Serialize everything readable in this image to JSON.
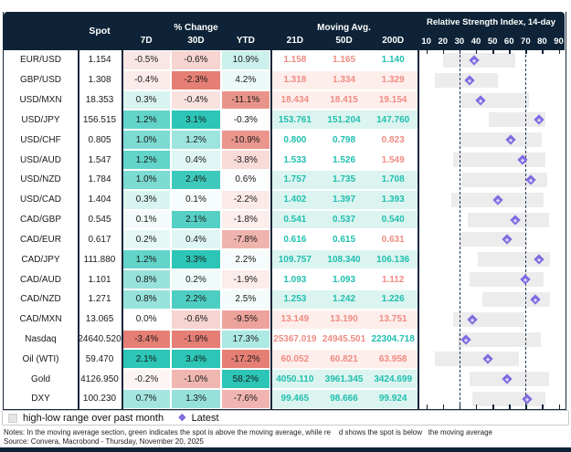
{
  "header": {
    "spot": "Spot",
    "pct_change_group": "% Change",
    "pct_cols": [
      "7D",
      "30D",
      "YTD"
    ],
    "ma_group": "Moving Avg.",
    "ma_cols": [
      "21D",
      "50D",
      "200D"
    ],
    "rsi_title": "Relative Strength Index, 14-day",
    "rsi_ticks": [
      10,
      20,
      30,
      40,
      50,
      60,
      70,
      80,
      90
    ]
  },
  "legend": {
    "range_label": "high-low range over past month",
    "latest_label": "Latest"
  },
  "notes": "Notes: In the moving average section, green indicates the spot is above the moving average, while re    d shows the spot is below   the moving average",
  "source": "Source: Convera, Macrobond - Thursday, November 20, 2025",
  "colors": {
    "header_bg": "#0e2337",
    "frame": "#18263a",
    "teal": "#2cc5b6",
    "salmon": "#e57f75",
    "ma_up_text": "#1fbfae",
    "ma_down_text": "#f08b82",
    "ma_up_bg": "#dcf4f0",
    "ma_down_bg": "#fdeeec",
    "bar": "#ececec",
    "marker": "#7f6ce0",
    "dash": "#223a52"
  },
  "chart_data": {
    "type": "table",
    "title": "FX and markets monitor: spot, % change, moving averages, RSI",
    "rsi_axis": {
      "min": 10,
      "max": 90,
      "oversold_line": 30,
      "overbought_line": 70,
      "bar_meaning": "high-low range over past month",
      "marker_meaning": "Latest"
    },
    "rows": [
      {
        "label": "EUR/USD",
        "spot": "1.154",
        "pct": [
          -0.5,
          -0.6,
          10.9
        ],
        "ma": [
          "1.158",
          "1.165",
          "1.140"
        ],
        "rsi": {
          "low": 20,
          "high": 64,
          "latest": 39
        }
      },
      {
        "label": "GBP/USD",
        "spot": "1.308",
        "pct": [
          -0.4,
          -2.3,
          4.2
        ],
        "ma": [
          "1.318",
          "1.334",
          "1.329"
        ],
        "rsi": {
          "low": 15,
          "high": 53,
          "latest": 36
        }
      },
      {
        "label": "USD/MXN",
        "spot": "18.353",
        "pct": [
          0.3,
          -0.4,
          -11.1
        ],
        "ma": [
          "18.434",
          "18.415",
          "19.154"
        ],
        "rsi": {
          "low": 30,
          "high": 72,
          "latest": 43
        }
      },
      {
        "label": "USD/JPY",
        "spot": "156.515",
        "pct": [
          1.2,
          3.1,
          -0.3
        ],
        "ma": [
          "153.761",
          "151.204",
          "147.760"
        ],
        "rsi": {
          "low": 48,
          "high": 82,
          "latest": 78
        }
      },
      {
        "label": "USD/CHF",
        "spot": "0.805",
        "pct": [
          1.0,
          1.2,
          -10.9
        ],
        "ma": [
          "0.800",
          "0.798",
          "0.823"
        ],
        "rsi": {
          "low": 30,
          "high": 80,
          "latest": 61
        }
      },
      {
        "label": "USD/AUD",
        "spot": "1.547",
        "pct": [
          1.2,
          0.4,
          -3.8
        ],
        "ma": [
          "1.533",
          "1.526",
          "1.549"
        ],
        "rsi": {
          "low": 26,
          "high": 82,
          "latest": 68
        }
      },
      {
        "label": "USD/NZD",
        "spot": "1.784",
        "pct": [
          1.0,
          2.4,
          0.6
        ],
        "ma": [
          "1.757",
          "1.735",
          "1.708"
        ],
        "rsi": {
          "low": 31,
          "high": 83,
          "latest": 73
        }
      },
      {
        "label": "USD/CAD",
        "spot": "1.404",
        "pct": [
          0.3,
          0.1,
          -2.2
        ],
        "ma": [
          "1.402",
          "1.397",
          "1.393"
        ],
        "rsi": {
          "low": 25,
          "high": 81,
          "latest": 53
        }
      },
      {
        "label": "CAD/GBP",
        "spot": "0.545",
        "pct": [
          0.1,
          2.1,
          -1.8
        ],
        "ma": [
          "0.541",
          "0.537",
          "0.540"
        ],
        "rsi": {
          "low": 35,
          "high": 84,
          "latest": 64
        }
      },
      {
        "label": "CAD/EUR",
        "spot": "0.617",
        "pct": [
          0.2,
          0.4,
          -7.8
        ],
        "ma": [
          "0.616",
          "0.615",
          "0.631"
        ],
        "rsi": {
          "low": 30,
          "high": 71,
          "latest": 59
        }
      },
      {
        "label": "CAD/JPY",
        "spot": "111.880",
        "pct": [
          1.2,
          3.3,
          2.2
        ],
        "ma": [
          "109.757",
          "108.340",
          "106.136"
        ],
        "rsi": {
          "low": 41,
          "high": 85,
          "latest": 78
        }
      },
      {
        "label": "CAD/AUD",
        "spot": "1.101",
        "pct": [
          0.8,
          0.2,
          -1.9
        ],
        "ma": [
          "1.093",
          "1.093",
          "1.112"
        ],
        "rsi": {
          "low": 36,
          "high": 81,
          "latest": 70
        }
      },
      {
        "label": "CAD/NZD",
        "spot": "1.271",
        "pct": [
          0.8,
          2.2,
          2.5
        ],
        "ma": [
          "1.253",
          "1.242",
          "1.226"
        ],
        "rsi": {
          "low": 44,
          "high": 85,
          "latest": 76
        }
      },
      {
        "label": "CAD/MXN",
        "spot": "13.065",
        "pct": [
          0.0,
          -0.6,
          -9.5
        ],
        "ma": [
          "13.149",
          "13.190",
          "13.751"
        ],
        "rsi": {
          "low": 26,
          "high": 69,
          "latest": 38
        }
      },
      {
        "label": "Nasdaq",
        "spot": "24640.520",
        "pct": [
          -3.4,
          -1.9,
          17.3
        ],
        "ma": [
          "25367.019",
          "24945.501",
          "22304.718"
        ],
        "rsi": {
          "low": 29,
          "high": 79,
          "latest": 34
        }
      },
      {
        "label": "Oil (WTI)",
        "spot": "59.470",
        "pct": [
          2.1,
          3.4,
          -17.2
        ],
        "ma": [
          "60.052",
          "60.821",
          "63.958"
        ],
        "rsi": {
          "low": 15,
          "high": 66,
          "latest": 47
        }
      },
      {
        "label": "Gold",
        "spot": "4126.950",
        "pct": [
          -0.2,
          -1.0,
          58.2
        ],
        "ma": [
          "4050.110",
          "3961.345",
          "3424.699"
        ],
        "rsi": {
          "low": 36,
          "high": 84,
          "latest": 59
        }
      },
      {
        "label": "DXY",
        "spot": "100.230",
        "pct": [
          0.7,
          1.3,
          -7.6
        ],
        "ma": [
          "99.465",
          "98.666",
          "99.924"
        ],
        "rsi": {
          "low": 38,
          "high": 82,
          "latest": 71
        }
      }
    ]
  }
}
